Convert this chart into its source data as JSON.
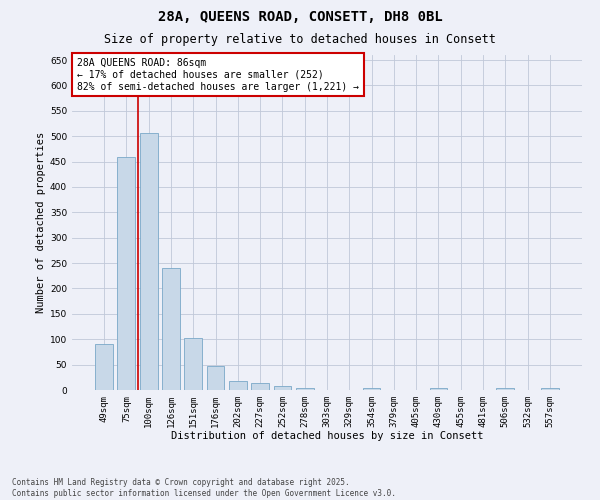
{
  "title_line1": "28A, QUEENS ROAD, CONSETT, DH8 0BL",
  "title_line2": "Size of property relative to detached houses in Consett",
  "xlabel": "Distribution of detached houses by size in Consett",
  "ylabel": "Number of detached properties",
  "categories": [
    "49sqm",
    "75sqm",
    "100sqm",
    "126sqm",
    "151sqm",
    "176sqm",
    "202sqm",
    "227sqm",
    "252sqm",
    "278sqm",
    "303sqm",
    "329sqm",
    "354sqm",
    "379sqm",
    "405sqm",
    "430sqm",
    "455sqm",
    "481sqm",
    "506sqm",
    "532sqm",
    "557sqm"
  ],
  "values": [
    90,
    460,
    507,
    240,
    103,
    47,
    18,
    14,
    8,
    4,
    0,
    0,
    4,
    0,
    0,
    4,
    0,
    0,
    4,
    0,
    4
  ],
  "bar_color": "#c8d8e8",
  "bar_edge_color": "#7aa8c8",
  "vline_x": 1.5,
  "vline_color": "#cc0000",
  "annotation_text": "28A QUEENS ROAD: 86sqm\n← 17% of detached houses are smaller (252)\n82% of semi-detached houses are larger (1,221) →",
  "annotation_box_color": "#cc0000",
  "annotation_box_facecolor": "white",
  "ylim": [
    0,
    660
  ],
  "yticks": [
    0,
    50,
    100,
    150,
    200,
    250,
    300,
    350,
    400,
    450,
    500,
    550,
    600,
    650
  ],
  "grid_color": "#c0c8d8",
  "background_color": "#eef0f8",
  "footer_text": "Contains HM Land Registry data © Crown copyright and database right 2025.\nContains public sector information licensed under the Open Government Licence v3.0.",
  "title_fontsize": 10,
  "subtitle_fontsize": 8.5,
  "label_fontsize": 7.5,
  "tick_fontsize": 6.5,
  "annotation_fontsize": 7,
  "footer_fontsize": 5.5
}
